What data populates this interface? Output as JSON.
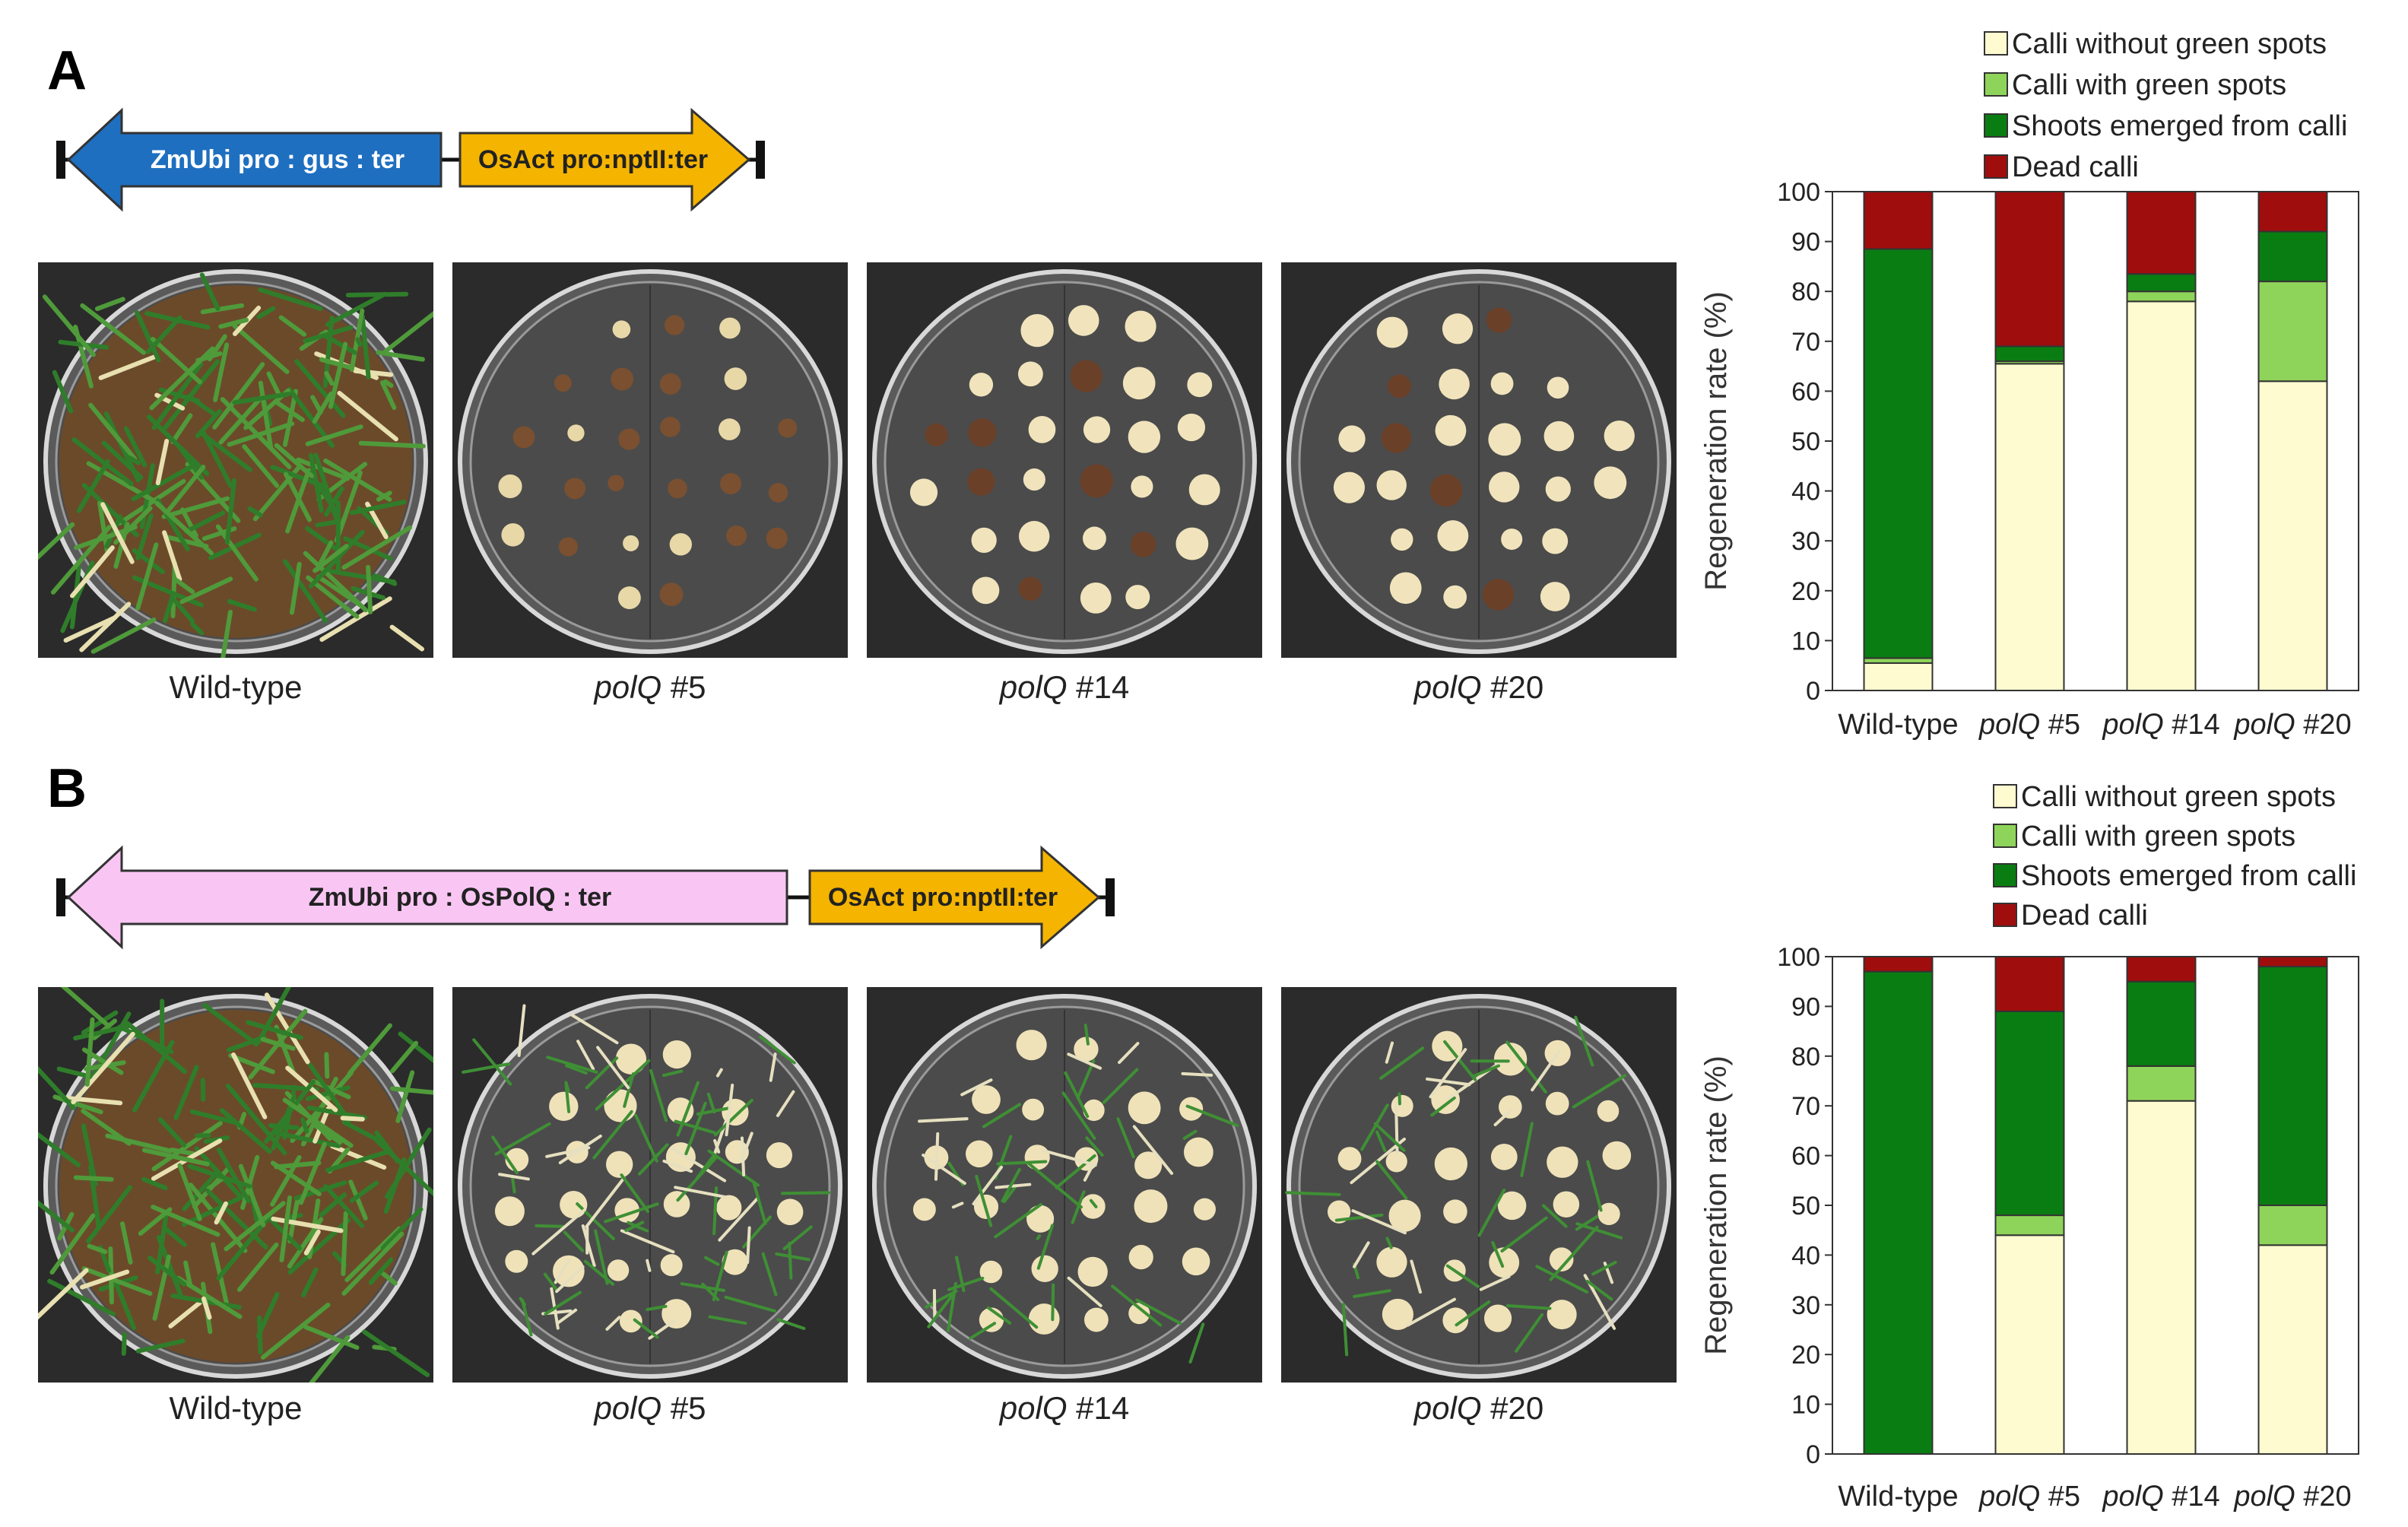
{
  "panels": [
    {
      "letter": "A",
      "construct": {
        "left_arrow": {
          "label": "ZmUbi pro : gus : ter",
          "color": "#1f6fc0",
          "text_color": "#ffffff"
        },
        "right_arrow": {
          "label": "OsAct pro:nptII:ter",
          "color": "#f5b400",
          "text_color": "#222222"
        }
      },
      "photos": [
        {
          "caption_main": "Wild-type",
          "caption_num": "",
          "content": "shoots"
        },
        {
          "caption_main": "polQ",
          "caption_num": " #5",
          "content": "calli-sparse"
        },
        {
          "caption_main": "polQ",
          "caption_num": " #14",
          "content": "calli"
        },
        {
          "caption_main": "polQ",
          "caption_num": " #20",
          "content": "calli"
        }
      ]
    },
    {
      "letter": "B",
      "construct": {
        "left_arrow": {
          "label": "ZmUbi pro : OsPolQ : ter",
          "color": "#f9c6f4",
          "text_color": "#222222"
        },
        "right_arrow": {
          "label": "OsAct pro:nptII:ter",
          "color": "#f5b400",
          "text_color": "#222222"
        }
      },
      "photos": [
        {
          "caption_main": "Wild-type",
          "caption_num": "",
          "content": "shoots"
        },
        {
          "caption_main": "polQ",
          "caption_num": " #5",
          "content": "mixed"
        },
        {
          "caption_main": "polQ",
          "caption_num": " #14",
          "content": "mixed-light"
        },
        {
          "caption_main": "polQ",
          "caption_num": " #20",
          "content": "mixed-light"
        }
      ]
    }
  ],
  "chart_data": [
    {
      "type": "bar",
      "stacked": true,
      "title": "",
      "xlabel": "",
      "ylabel": "Regeneration rate (%)",
      "ylim": [
        0,
        100
      ],
      "yticks": [
        0,
        10,
        20,
        30,
        40,
        50,
        60,
        70,
        80,
        90,
        100
      ],
      "categories": [
        {
          "main": "Wild-type",
          "num": ""
        },
        {
          "main": "polQ",
          "num": " #5"
        },
        {
          "main": "polQ",
          "num": " #14"
        },
        {
          "main": "polQ",
          "num": " #20"
        }
      ],
      "series": [
        {
          "name": "Calli without green spots",
          "color": "#fffbd0",
          "values": [
            5.5,
            65.5,
            78,
            62
          ]
        },
        {
          "name": "Calli with green spots",
          "color": "#8fd45a",
          "values": [
            1,
            0.5,
            2,
            20
          ]
        },
        {
          "name": "Shoots emerged from calli",
          "color": "#0a7d12",
          "values": [
            82,
            3,
            3.5,
            10
          ]
        },
        {
          "name": "Dead calli",
          "color": "#a00d0d",
          "values": [
            11.5,
            31,
            16.5,
            8
          ]
        }
      ],
      "legend_position": "top"
    },
    {
      "type": "bar",
      "stacked": true,
      "title": "",
      "xlabel": "",
      "ylabel": "Regeneration rate (%)",
      "ylim": [
        0,
        100
      ],
      "yticks": [
        0,
        10,
        20,
        30,
        40,
        50,
        60,
        70,
        80,
        90,
        100
      ],
      "categories": [
        {
          "main": "Wild-type",
          "num": ""
        },
        {
          "main": "polQ",
          "num": " #5"
        },
        {
          "main": "polQ",
          "num": " #14"
        },
        {
          "main": "polQ",
          "num": " #20"
        }
      ],
      "series": [
        {
          "name": "Calli without green spots",
          "color": "#fffbd0",
          "values": [
            0,
            44,
            71,
            42
          ]
        },
        {
          "name": "Calli with green spots",
          "color": "#8fd45a",
          "values": [
            0,
            4,
            7,
            8
          ]
        },
        {
          "name": "Shoots emerged from calli",
          "color": "#0a7d12",
          "values": [
            97,
            41,
            17,
            48
          ]
        },
        {
          "name": "Dead calli",
          "color": "#a00d0d",
          "values": [
            3,
            11,
            5,
            2
          ]
        }
      ],
      "legend_position": "top"
    }
  ]
}
